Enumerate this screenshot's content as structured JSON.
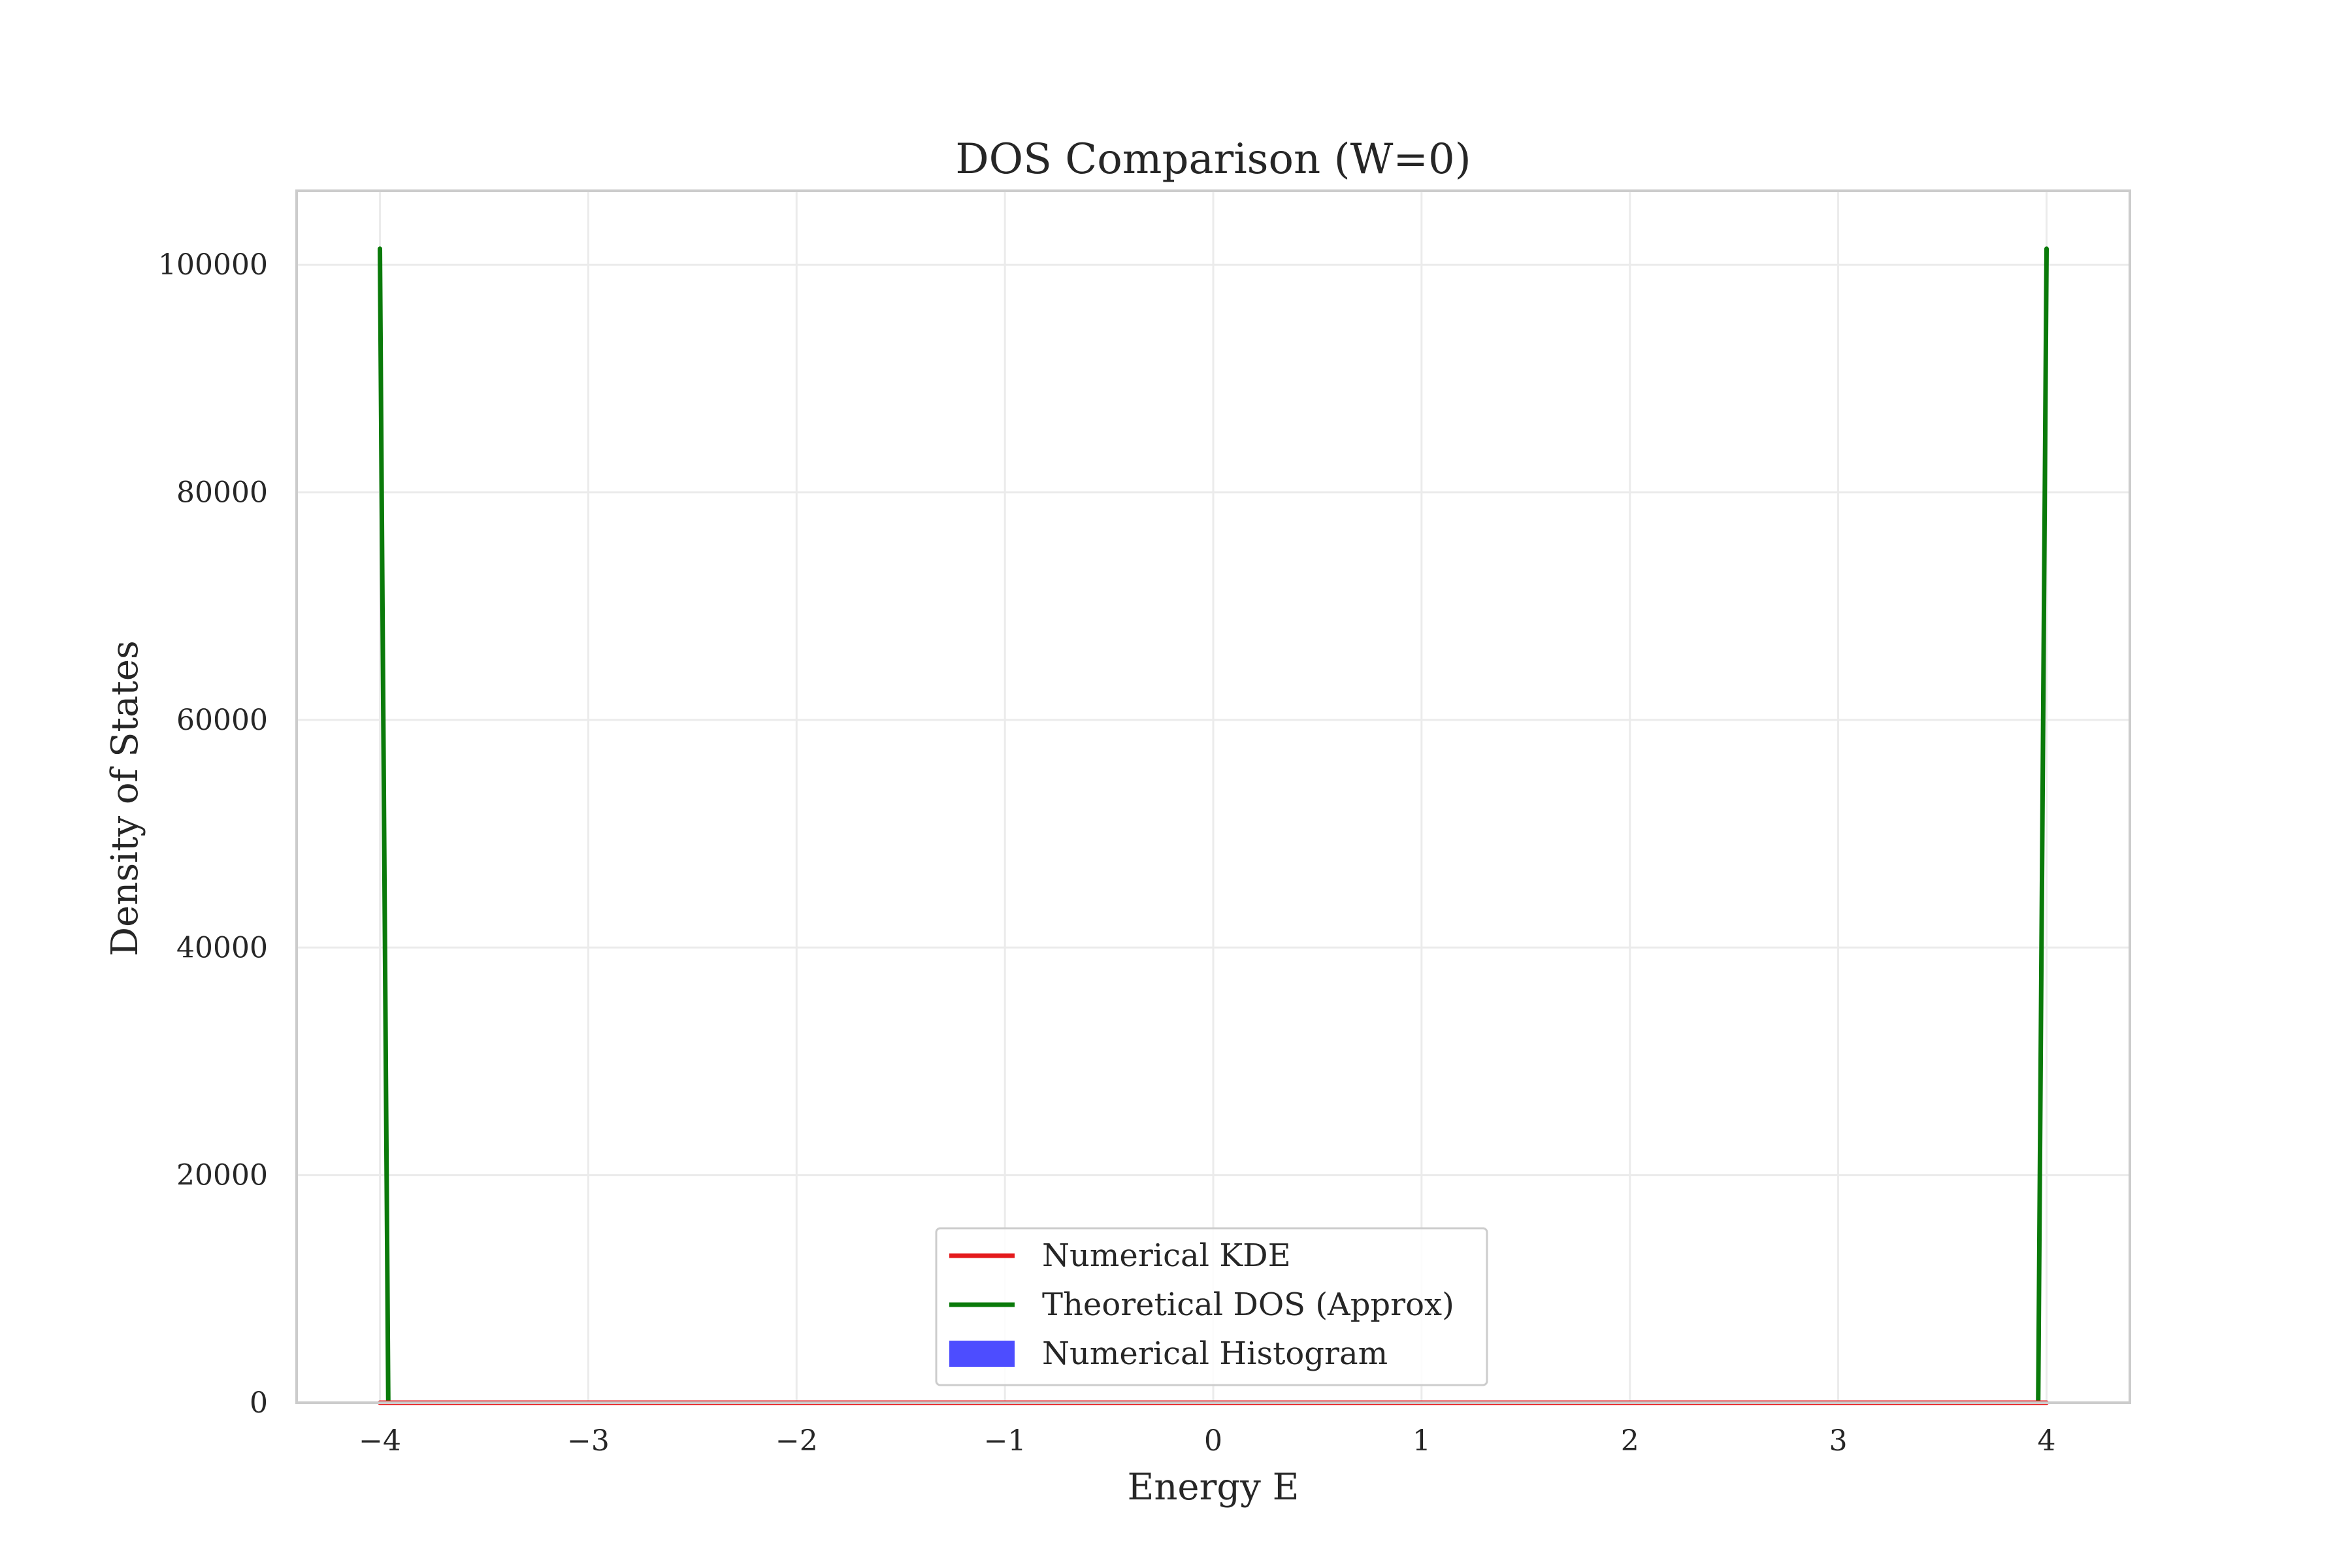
{
  "chart_data": {
    "type": "line",
    "title": "DOS Comparison (W=0)",
    "xlabel": "Energy E",
    "ylabel": "Density of States",
    "xlim": [
      -4.4,
      4.4
    ],
    "ylim": [
      0,
      106500
    ],
    "xticks": [
      -4,
      -3,
      -2,
      -1,
      0,
      1,
      2,
      3,
      4
    ],
    "xtick_labels": [
      "−4",
      "−3",
      "−2",
      "−1",
      "0",
      "1",
      "2",
      "3",
      "4"
    ],
    "yticks": [
      0,
      20000,
      40000,
      60000,
      80000,
      100000
    ],
    "ytick_labels": [
      "0",
      "20000",
      "40000",
      "60000",
      "80000",
      "100000"
    ],
    "grid": true,
    "legend_position": "bottom-center",
    "series": [
      {
        "name": "Numerical KDE",
        "kind": "line",
        "color": "#e41a1c",
        "x": [
          -4.0,
          -3.96,
          3.96,
          4.0
        ],
        "y": [
          0,
          0,
          0,
          0
        ]
      },
      {
        "name": "Theoretical DOS (Approx)",
        "kind": "line",
        "color": "#0a7a0a",
        "x": [
          -4.0,
          -3.96,
          3.96,
          4.0
        ],
        "y": [
          101400,
          0,
          0,
          101400
        ]
      },
      {
        "name": "Numerical Histogram",
        "kind": "histogram",
        "color": "#4d4dff",
        "x": [],
        "y": []
      }
    ]
  }
}
